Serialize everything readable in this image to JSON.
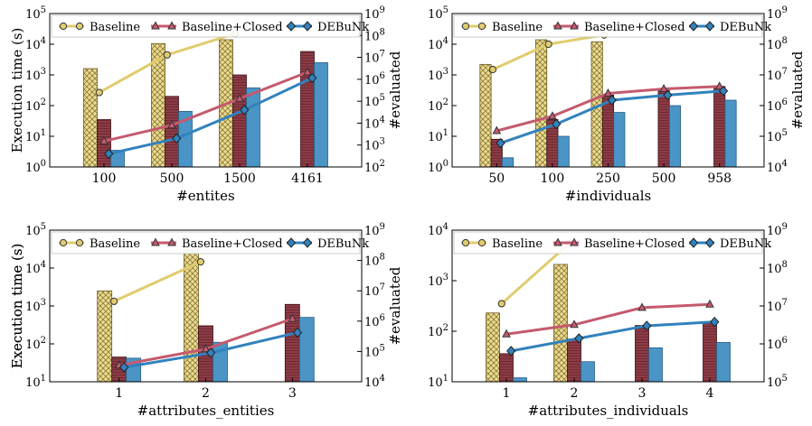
{
  "legend_labels": [
    "Baseline",
    "Baseline+Closed",
    "DEBuNk"
  ],
  "colors": {
    "baseline": "#e0cc6e",
    "closed": "#c45a6e",
    "debunk": "#3182bd",
    "bar_closed": "#8c3b45",
    "bar_debunk": "#4a94c6"
  },
  "chart_data": [
    {
      "type": "bar",
      "xlabel": "#entites",
      "ylabel": "Execution time (s)",
      "y2label": "#evaluated",
      "categories": [
        "100",
        "500",
        "1500",
        "4161"
      ],
      "ylim_log10": [
        0,
        5
      ],
      "y2lim_log10": [
        2,
        9
      ],
      "yticks": [
        "10^0",
        "10^1",
        "10^2",
        "10^3",
        "10^4",
        "10^5"
      ],
      "y2ticks": [
        "10^2",
        "10^3",
        "10^4",
        "10^5",
        "10^6",
        "10^7",
        "10^8",
        "10^9"
      ],
      "bars": {
        "Baseline": [
          1600,
          10500,
          14000,
          null
        ],
        "Baseline+Closed": [
          35,
          200,
          1000,
          5800
        ],
        "DEBuNk": [
          3.5,
          65,
          380,
          2500
        ]
      },
      "lines": {
        "Baseline": [
          250000,
          13000000,
          120000000,
          null
        ],
        "Baseline+Closed": [
          1500,
          8000,
          130000,
          2100000
        ],
        "DEBuNk": [
          400,
          2000,
          40000,
          1150000
        ]
      }
    },
    {
      "type": "bar",
      "xlabel": "#individuals",
      "ylabel": "",
      "y2label": "#evaluated",
      "categories": [
        "50",
        "100",
        "250",
        "500",
        "958"
      ],
      "ylim_log10": [
        0,
        5
      ],
      "y2lim_log10": [
        4,
        9
      ],
      "yticks": [
        "10^0",
        "10^1",
        "10^2",
        "10^3",
        "10^4",
        "10^5"
      ],
      "y2ticks": [
        "10^4",
        "10^5",
        "10^6",
        "10^7",
        "10^8",
        "10^9"
      ],
      "bars": {
        "Baseline": [
          2200,
          14000,
          12000,
          null,
          null
        ],
        "Baseline+Closed": [
          8,
          35,
          220,
          360,
          420
        ],
        "DEBuNk": [
          2,
          10,
          60,
          100,
          150
        ]
      },
      "lines": {
        "Baseline": [
          15000000,
          100000000,
          200000000,
          null,
          null
        ],
        "Baseline+Closed": [
          150000,
          450000,
          2500000,
          3500000,
          4200000
        ],
        "DEBuNk": [
          60000,
          250000,
          1500000,
          2200000,
          3000000
        ]
      }
    },
    {
      "type": "bar",
      "xlabel": "#attributes_entities",
      "ylabel": "Execution time (s)",
      "y2label": "#evaluated",
      "categories": [
        "1",
        "2",
        "3"
      ],
      "ylim_log10": [
        1,
        5
      ],
      "y2lim_log10": [
        4,
        9
      ],
      "yticks": [
        "10^1",
        "10^2",
        "10^3",
        "10^4",
        "10^5"
      ],
      "y2ticks": [
        "10^4",
        "10^5",
        "10^6",
        "10^7",
        "10^8",
        "10^9"
      ],
      "bars": {
        "Baseline": [
          2500,
          30000,
          null
        ],
        "Baseline+Closed": [
          45,
          300,
          1100
        ],
        "DEBuNk": [
          42,
          110,
          500
        ]
      },
      "lines": {
        "Baseline": [
          4500000,
          90000000,
          null
        ],
        "Baseline+Closed": [
          35000,
          120000,
          1200000
        ],
        "DEBuNk": [
          30000,
          90000,
          420000
        ]
      }
    },
    {
      "type": "bar",
      "xlabel": "#attributes_individuals",
      "ylabel": "Execution time (s)",
      "y2label": "",
      "categories": [
        "1",
        "2",
        "3",
        "4"
      ],
      "ylim_log10": [
        1,
        4
      ],
      "y2lim_log10": [
        5,
        9
      ],
      "yticks": [
        "10^1",
        "10^2",
        "10^3",
        "10^4"
      ],
      "y2ticks": [
        "10^5",
        "10^6",
        "10^7",
        "10^8",
        "10^9"
      ],
      "bars": {
        "Baseline": [
          230,
          2100,
          null,
          null
        ],
        "Baseline+Closed": [
          36,
          70,
          130,
          150
        ],
        "DEBuNk": [
          12,
          25,
          47,
          60
        ]
      },
      "lines": {
        "Baseline": [
          11500000,
          450000000,
          null,
          null
        ],
        "Baseline+Closed": [
          1800000,
          3200000,
          9000000,
          11000000
        ],
        "DEBuNk": [
          650000,
          1400000,
          3000000,
          3800000
        ]
      }
    }
  ]
}
